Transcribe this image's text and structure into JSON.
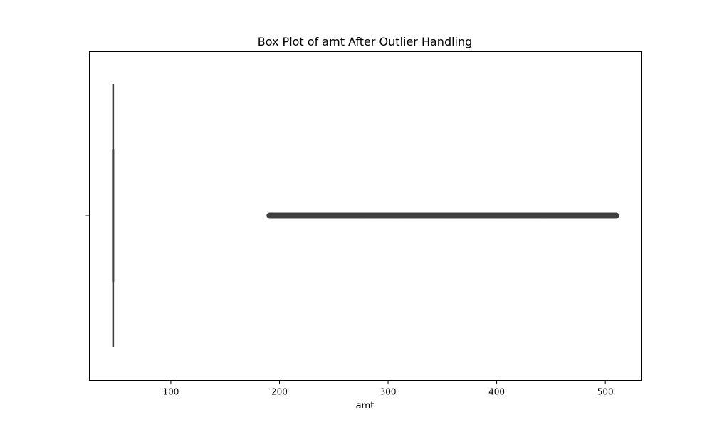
{
  "chart_data": {
    "type": "box",
    "title": "Box Plot of amt After Outlier Handling",
    "xlabel": "amt",
    "ylabel": "",
    "xlim": [
      25,
      533
    ],
    "xticks": [
      100,
      200,
      300,
      400,
      500
    ],
    "orientation": "horizontal",
    "grid": false,
    "series": [
      {
        "whisker_low": 47.2,
        "q1": 47.2,
        "median": 47.2,
        "q3": 47.2,
        "whisker_high": 47.2,
        "outliers_range": [
          191,
          510
        ]
      }
    ],
    "colors": {
      "box_edge": "#3f3f3f",
      "outlier": "#3f3f3f",
      "frame": "#000000"
    }
  }
}
